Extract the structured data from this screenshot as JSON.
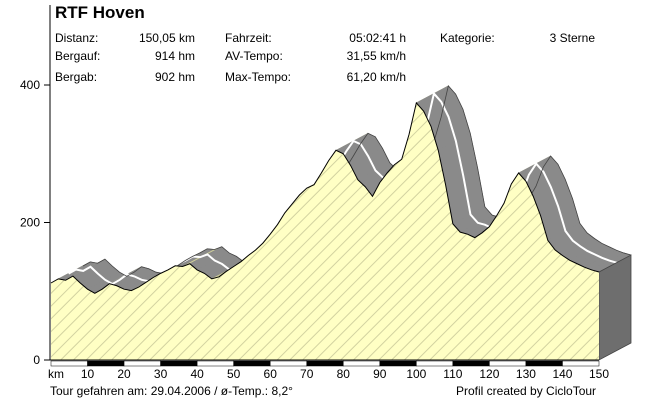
{
  "title": "RTF Hoven",
  "stats": {
    "distance_label": "Distanz:",
    "distance_value": "150,05 km",
    "ascent_label": "Bergauf:",
    "ascent_value": "914 hm",
    "descent_label": "Bergab:",
    "descent_value": "902 hm",
    "time_label": "Fahrzeit:",
    "time_value": "05:02:41 h",
    "avg_label": "AV-Tempo:",
    "avg_value": "31,55 km/h",
    "max_label": "Max-Tempo:",
    "max_value": "61,20 km/h",
    "category_label": "Kategorie:",
    "category_value": "3 Sterne"
  },
  "footer": {
    "left": "Tour gefahren am: 29.04.2006  /  ø-Temp.: 8,2°",
    "right": "Profil created by CicloTour"
  },
  "colors": {
    "fill": "#ffffc4",
    "hatch": "#d2d2a0",
    "wall": "#6e6e6e",
    "ribbon": "#8a8a8a",
    "ribbon_light": "#b8b8b8",
    "olive": "#cfcf9a"
  },
  "chart_data": {
    "type": "area",
    "title": "RTF Hoven",
    "xlabel": "km",
    "ylabel": "",
    "xlim": [
      0,
      150
    ],
    "ylim": [
      0,
      400
    ],
    "x_ticks": [
      10,
      20,
      30,
      40,
      50,
      60,
      70,
      80,
      90,
      100,
      110,
      120,
      130,
      140,
      150
    ],
    "y_ticks": [
      0,
      200,
      400
    ],
    "x": [
      0,
      2,
      4,
      6,
      8,
      10,
      12,
      14,
      16,
      18,
      20,
      22,
      24,
      26,
      28,
      30,
      32,
      34,
      36,
      38,
      40,
      42,
      44,
      46,
      48,
      50,
      52,
      54,
      56,
      58,
      60,
      62,
      64,
      66,
      68,
      70,
      72,
      74,
      76,
      78,
      80,
      82,
      84,
      86,
      88,
      90,
      92,
      94,
      96,
      98,
      100,
      102,
      104,
      106,
      108,
      110,
      112,
      114,
      116,
      118,
      120,
      122,
      124,
      126,
      128,
      130,
      132,
      134,
      136,
      138,
      140,
      142,
      144,
      146,
      148,
      150
    ],
    "elevation": [
      112,
      118,
      116,
      122,
      112,
      103,
      97,
      103,
      111,
      108,
      103,
      101,
      106,
      113,
      120,
      126,
      131,
      137,
      136,
      140,
      131,
      126,
      118,
      121,
      129,
      136,
      143,
      152,
      160,
      170,
      183,
      197,
      214,
      227,
      240,
      250,
      255,
      272,
      290,
      305,
      300,
      283,
      262,
      252,
      238,
      258,
      272,
      284,
      292,
      328,
      374,
      362,
      340,
      305,
      255,
      198,
      186,
      183,
      178,
      185,
      194,
      210,
      228,
      256,
      272,
      260,
      238,
      210,
      174,
      160,
      152,
      145,
      140,
      135,
      131,
      128
    ]
  }
}
